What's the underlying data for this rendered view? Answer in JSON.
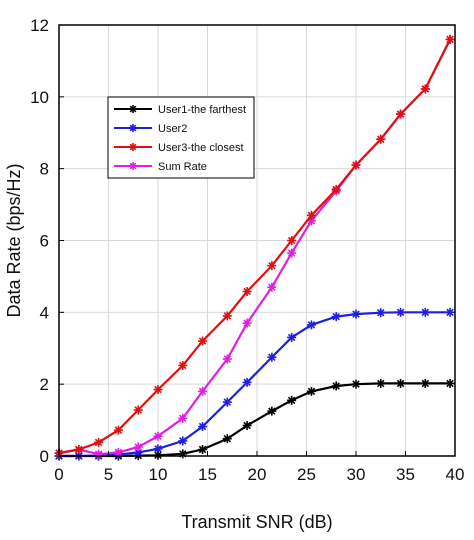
{
  "chart_data": {
    "type": "line",
    "xlabel": "Transmit SNR (dB)",
    "ylabel": "Data Rate (bps/Hz)",
    "xlim": [
      0,
      40
    ],
    "ylim": [
      0,
      12
    ],
    "x_ticks": [
      0,
      5,
      10,
      15,
      20,
      25,
      30,
      35,
      40
    ],
    "y_ticks": [
      0,
      2,
      4,
      6,
      8,
      10,
      12
    ],
    "grid": true,
    "legend_position": "upper-left",
    "marker": "asterisk",
    "x": [
      0,
      2,
      4,
      6,
      8,
      10,
      12.5,
      14.5,
      17,
      19,
      21.5,
      23.5,
      25.5,
      28,
      30,
      32.5,
      34.5,
      37,
      39.5
    ],
    "series": [
      {
        "name": "User1-the farthest",
        "color": "#000000",
        "values": [
          0.0,
          0.0,
          0.0,
          0.0,
          0.01,
          0.02,
          0.06,
          0.18,
          0.48,
          0.85,
          1.25,
          1.55,
          1.8,
          1.95,
          2.0,
          2.02,
          2.02,
          2.02,
          2.02
        ]
      },
      {
        "name": "User2",
        "color": "#1f1fe0",
        "values": [
          0.0,
          0.0,
          0.01,
          0.04,
          0.1,
          0.2,
          0.42,
          0.82,
          1.5,
          2.05,
          2.75,
          3.3,
          3.65,
          3.88,
          3.95,
          3.99,
          4.0,
          4.0,
          4.0
        ]
      },
      {
        "name": "User3-the closest",
        "color": "#e01010",
        "values": [
          0.08,
          0.18,
          0.38,
          0.72,
          1.28,
          1.85,
          2.52,
          3.2,
          3.9,
          4.58,
          5.3,
          6.0,
          6.7,
          7.42,
          8.1,
          8.82,
          9.52,
          10.22,
          11.6
        ]
      },
      {
        "name": "Sum Rate",
        "color": "#e020e0",
        "values": [
          0.08,
          0.18,
          0.05,
          0.1,
          0.25,
          0.55,
          1.05,
          1.8,
          2.7,
          3.7,
          4.7,
          5.65,
          6.55,
          7.38,
          8.1,
          8.82,
          9.52,
          10.22,
          11.6
        ]
      }
    ]
  }
}
